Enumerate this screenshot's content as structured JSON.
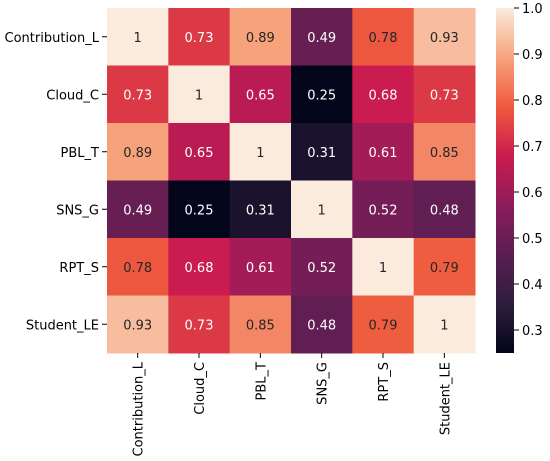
{
  "chart_data": {
    "type": "heatmap",
    "title": "",
    "rows": [
      "Contribution_L",
      "Cloud_C",
      "PBL_T",
      "SNS_G",
      "RPT_S",
      "Student_LE"
    ],
    "columns": [
      "Contribution_L",
      "Cloud_C",
      "PBL_T",
      "SNS_G",
      "RPT_S",
      "Student_LE"
    ],
    "values": [
      [
        1,
        0.73,
        0.89,
        0.49,
        0.78,
        0.93
      ],
      [
        0.73,
        1,
        0.65,
        0.25,
        0.68,
        0.73
      ],
      [
        0.89,
        0.65,
        1,
        0.31,
        0.61,
        0.85
      ],
      [
        0.49,
        0.25,
        0.31,
        1,
        0.52,
        0.48
      ],
      [
        0.78,
        0.68,
        0.61,
        0.52,
        1,
        0.79
      ],
      [
        0.93,
        0.73,
        0.85,
        0.48,
        0.79,
        1
      ]
    ],
    "value_labels": [
      [
        "1",
        "0.73",
        "0.89",
        "0.49",
        "0.78",
        "0.93"
      ],
      [
        "0.73",
        "1",
        "0.65",
        "0.25",
        "0.68",
        "0.73"
      ],
      [
        "0.89",
        "0.65",
        "1",
        "0.31",
        "0.61",
        "0.85"
      ],
      [
        "0.49",
        "0.25",
        "0.31",
        "1",
        "0.52",
        "0.48"
      ],
      [
        "0.78",
        "0.68",
        "0.61",
        "0.52",
        "1",
        "0.79"
      ],
      [
        "0.93",
        "0.73",
        "0.85",
        "0.48",
        "0.79",
        "1"
      ]
    ],
    "colorbar": {
      "range": [
        0.25,
        1.0
      ],
      "ticks": [
        0.3,
        0.4,
        0.5,
        0.6,
        0.7,
        0.8,
        0.9,
        1.0
      ],
      "tick_labels": [
        "0.3",
        "0.4",
        "0.5",
        "0.6",
        "0.7",
        "0.8",
        "0.9",
        "1.0"
      ],
      "colormap": "rocket",
      "colors": [
        "#03051a",
        "#2d1e3e",
        "#5a1e51",
        "#8d1c5b",
        "#cb1b4f",
        "#ef5a3f",
        "#f6a47c",
        "#faebdd"
      ]
    },
    "grid": false,
    "legend": "colorbar-right"
  }
}
